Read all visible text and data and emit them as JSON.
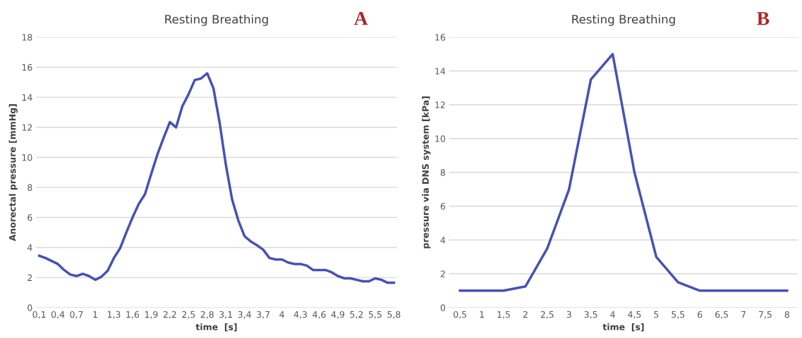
{
  "chart_data": [
    {
      "type": "line",
      "title": "Resting Breathing",
      "xlabel": "time  [s]",
      "ylabel": "Anorectal pressure [mmHg]",
      "annotations": [
        "A"
      ],
      "categories": [
        "0,1",
        null,
        null,
        "0,4",
        null,
        null,
        "0,7",
        null,
        null,
        "1",
        null,
        null,
        "1,3",
        null,
        null,
        "1,6",
        null,
        null,
        "1,9",
        null,
        null,
        "2,2",
        null,
        null,
        "2,5",
        null,
        null,
        "2,8",
        null,
        null,
        "3,1",
        null,
        null,
        "3,4",
        null,
        null,
        "3,7",
        null,
        null,
        "4",
        null,
        null,
        "4,3",
        null,
        null,
        "4,6",
        null,
        null,
        "4,9",
        null,
        null,
        "5,2",
        null,
        null,
        "5,5",
        null,
        null,
        "5,8"
      ],
      "series": [
        {
          "color": "#4451b8",
          "values": [
            3.45,
            3.3,
            3.1,
            2.9,
            2.5,
            2.2,
            2.1,
            2.25,
            2.1,
            1.85,
            2.05,
            2.45,
            3.3,
            3.95,
            5.0,
            6.0,
            6.9,
            7.55,
            8.9,
            10.2,
            11.3,
            12.35,
            12.0,
            13.4,
            14.2,
            15.15,
            15.25,
            15.6,
            14.6,
            12.3,
            9.5,
            7.2,
            5.8,
            4.75,
            4.4,
            4.15,
            3.85,
            3.3,
            3.2,
            3.2,
            3.0,
            2.9,
            2.9,
            2.8,
            2.5,
            2.5,
            2.5,
            2.35,
            2.1,
            1.95,
            1.95,
            1.85,
            1.75,
            1.75,
            1.95,
            1.85,
            1.65,
            1.65
          ]
        }
      ],
      "ylim": [
        0,
        18
      ],
      "yticks": [
        0,
        2,
        4,
        6,
        8,
        10,
        12,
        14,
        16,
        18
      ],
      "grid": "y",
      "marker": "none",
      "line_style": "solid"
    },
    {
      "type": "line",
      "title": "Resting Breathing",
      "xlabel": "time  [s]",
      "ylabel": "pressure via DNS system [kPa]",
      "annotations": [
        "B"
      ],
      "categories": [
        "0,5",
        "1",
        "1,5",
        "2",
        "2,5",
        "3",
        "3,5",
        "4",
        "4,5",
        "5",
        "5,5",
        "6",
        "6,5",
        "7",
        "7,5",
        "8"
      ],
      "series": [
        {
          "color": "#4451b8",
          "values": [
            1,
            1,
            1,
            1.25,
            3.5,
            7,
            13.5,
            15,
            8,
            3,
            1.5,
            1,
            1,
            1,
            1,
            1
          ]
        }
      ],
      "ylim": [
        0,
        16
      ],
      "yticks": [
        0,
        2,
        4,
        6,
        8,
        10,
        12,
        14,
        16
      ],
      "grid": "y",
      "marker": "none",
      "line_style": "solid"
    }
  ]
}
